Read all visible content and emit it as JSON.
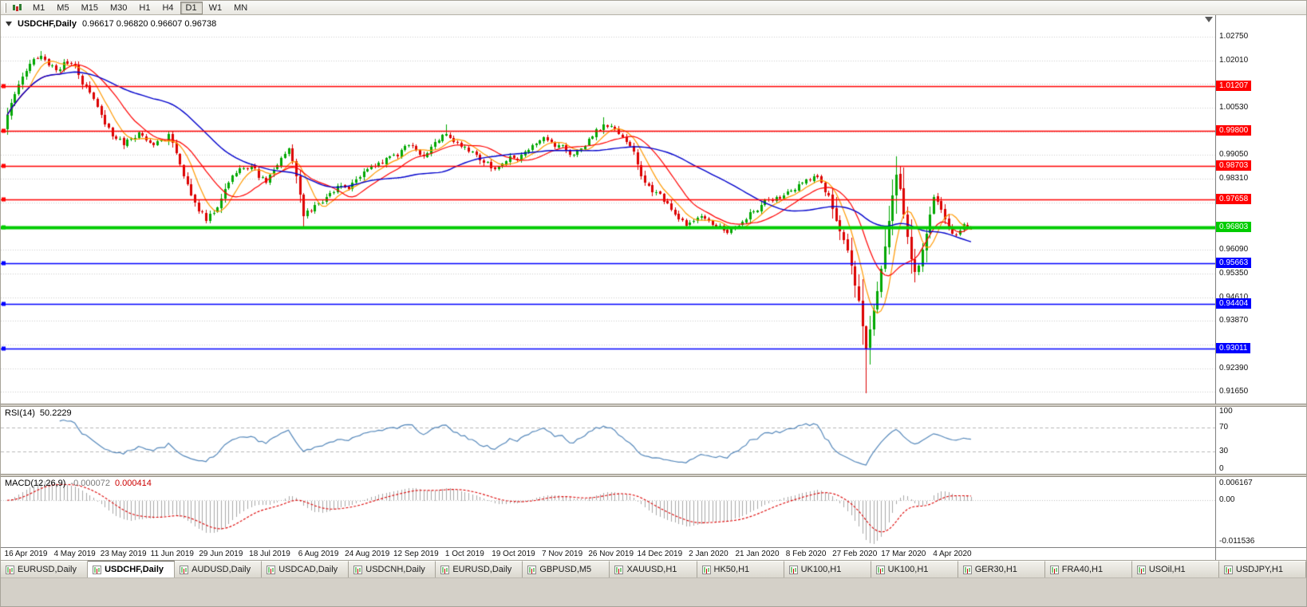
{
  "toolbar": {
    "timeframes": [
      "M1",
      "M5",
      "M15",
      "M30",
      "H1",
      "H4",
      "D1",
      "W1",
      "MN"
    ],
    "active": "D1"
  },
  "main_chart": {
    "title": "USDCHF,Daily",
    "ohlc_text": "0.96617 0.96820 0.96607 0.96738",
    "ohlc": {
      "open": "0.96617",
      "high": "0.96820",
      "low": "0.96607",
      "close": "0.96738"
    },
    "scale": {
      "max": 1.0275,
      "min": 0.9161,
      "grid_step": 0.0074
    },
    "price_axis_labels": [
      "1.02750",
      "1.02010",
      "1.00530",
      "0.99050",
      "0.98310",
      "0.96090",
      "0.95350",
      "0.94610",
      "0.93870",
      "0.92390",
      "0.91650"
    ],
    "levels": [
      {
        "price": 1.01207,
        "label": "1.01207",
        "type": "resistance",
        "color": "#FF0000",
        "width": 1.5
      },
      {
        "price": 0.998,
        "label": "0.99800",
        "type": "resistance",
        "color": "#FF0000",
        "width": 1.5
      },
      {
        "price": 0.98703,
        "label": "0.98703",
        "type": "resistance",
        "color": "#FF0000",
        "width": 1.5
      },
      {
        "price": 0.97658,
        "label": "0.97658",
        "type": "resistance",
        "color": "#FF0000",
        "width": 1.5
      },
      {
        "price": 0.96803,
        "label": "0.96803",
        "type": "current-level",
        "color": "#00CC00",
        "width": 4
      },
      {
        "price": 0.95663,
        "label": "0.95663",
        "type": "support",
        "color": "#0000FF",
        "width": 1.5
      },
      {
        "price": 0.94404,
        "label": "0.94404",
        "type": "support",
        "color": "#0000FF",
        "width": 1.5
      },
      {
        "price": 0.93011,
        "label": "0.93011",
        "type": "support",
        "color": "#0000FF",
        "width": 1.5
      }
    ]
  },
  "colors": {
    "candle_up": "#00A800",
    "candle_down": "#DC0000",
    "ma_fast": "#FF9900",
    "ma_mid": "#FF0000",
    "ma_slow": "#0000CC",
    "rsi_line": "#5588BB",
    "macd_hist": "#A8A8A8",
    "macd_signal": "#DD0000",
    "grid": "#CDCDCD"
  },
  "rsi": {
    "title": "RSI(14)",
    "value": "50.2229",
    "period": 14,
    "levels": [
      70,
      30
    ],
    "axis_labels": [
      "100",
      "70",
      "30",
      "0"
    ]
  },
  "macd": {
    "title": "MACD(12,26,9)",
    "value_main": "-0.000072",
    "value_signal": "0.000414",
    "fast": 12,
    "slow": 26,
    "signal": 9,
    "axis_labels": [
      "0.006167",
      "0.00",
      "-0.011536"
    ]
  },
  "chart_data": {
    "type": "candlestick",
    "symbol": "USDCHF",
    "timeframe": "Daily",
    "bars": 258,
    "last_ohlc": {
      "open": 0.96617,
      "high": 0.9682,
      "low": 0.96607,
      "close": 0.96738
    },
    "x_labels": [
      "16 Apr 2019",
      "4 May 2019",
      "23 May 2019",
      "11 Jun 2019",
      "29 Jun 2019",
      "18 Jul 2019",
      "6 Aug 2019",
      "24 Aug 2019",
      "12 Sep 2019",
      "1 Oct 2019",
      "19 Oct 2019",
      "7 Nov 2019",
      "26 Nov 2019",
      "14 Dec 2019",
      "2 Jan 2020",
      "21 Jan 2020",
      "8 Feb 2020",
      "27 Feb 2020",
      "17 Mar 2020",
      "4 Apr 2020"
    ],
    "close_path": [
      [
        0,
        1.003
      ],
      [
        2,
        1.0095
      ],
      [
        4,
        1.015
      ],
      [
        7,
        1.0205
      ],
      [
        9,
        1.0215
      ],
      [
        11,
        1.0185
      ],
      [
        13,
        1.017
      ],
      [
        15,
        1.0195
      ],
      [
        17,
        1.019
      ],
      [
        19,
        1.0155
      ],
      [
        21,
        1.012
      ],
      [
        23,
        1.008
      ],
      [
        25,
        1.003
      ],
      [
        27,
        0.999
      ],
      [
        29,
        0.9955
      ],
      [
        31,
        0.9935
      ],
      [
        33,
        0.9955
      ],
      [
        35,
        0.9975
      ],
      [
        37,
        0.995
      ],
      [
        39,
        0.9935
      ],
      [
        41,
        0.995
      ],
      [
        43,
        0.997
      ],
      [
        45,
        0.991
      ],
      [
        47,
        0.984
      ],
      [
        49,
        0.978
      ],
      [
        51,
        0.973
      ],
      [
        53,
        0.97
      ],
      [
        55,
        0.9725
      ],
      [
        57,
        0.977
      ],
      [
        59,
        0.982
      ],
      [
        61,
        0.985
      ],
      [
        63,
        0.9865
      ],
      [
        65,
        0.987
      ],
      [
        67,
        0.9835
      ],
      [
        69,
        0.982
      ],
      [
        71,
        0.986
      ],
      [
        73,
        0.9895
      ],
      [
        75,
        0.9925
      ],
      [
        77,
        0.984
      ],
      [
        79,
        0.9715
      ],
      [
        81,
        0.973
      ],
      [
        83,
        0.9755
      ],
      [
        85,
        0.9775
      ],
      [
        87,
        0.979
      ],
      [
        89,
        0.981
      ],
      [
        91,
        0.98
      ],
      [
        93,
        0.983
      ],
      [
        95,
        0.9855
      ],
      [
        97,
        0.987
      ],
      [
        99,
        0.988
      ],
      [
        101,
        0.9895
      ],
      [
        103,
        0.9905
      ],
      [
        105,
        0.992
      ],
      [
        107,
        0.9935
      ],
      [
        109,
        0.992
      ],
      [
        111,
        0.99
      ],
      [
        113,
        0.993
      ],
      [
        115,
        0.995
      ],
      [
        117,
        0.997
      ],
      [
        119,
        0.9945
      ],
      [
        121,
        0.993
      ],
      [
        123,
        0.9915
      ],
      [
        125,
        0.9905
      ],
      [
        127,
        0.988
      ],
      [
        129,
        0.9865
      ],
      [
        131,
        0.987
      ],
      [
        133,
        0.9885
      ],
      [
        135,
        0.9895
      ],
      [
        137,
        0.9905
      ],
      [
        139,
        0.992
      ],
      [
        141,
        0.994
      ],
      [
        143,
        0.996
      ],
      [
        145,
        0.9945
      ],
      [
        147,
        0.9935
      ],
      [
        149,
        0.992
      ],
      [
        151,
        0.9905
      ],
      [
        153,
        0.9925
      ],
      [
        155,
        0.9955
      ],
      [
        157,
        0.9985
      ],
      [
        159,
        1.0
      ],
      [
        161,
        0.9995
      ],
      [
        163,
        0.997
      ],
      [
        165,
        0.9945
      ],
      [
        167,
        0.9915
      ],
      [
        169,
        0.984
      ],
      [
        171,
        0.981
      ],
      [
        173,
        0.979
      ],
      [
        175,
        0.976
      ],
      [
        177,
        0.9735
      ],
      [
        179,
        0.9705
      ],
      [
        181,
        0.9685
      ],
      [
        183,
        0.97
      ],
      [
        185,
        0.9715
      ],
      [
        187,
        0.97
      ],
      [
        189,
        0.968
      ],
      [
        191,
        0.967
      ],
      [
        193,
        0.9675
      ],
      [
        195,
        0.9685
      ],
      [
        197,
        0.9705
      ],
      [
        199,
        0.973
      ],
      [
        201,
        0.975
      ],
      [
        203,
        0.9765
      ],
      [
        205,
        0.9775
      ],
      [
        207,
        0.978
      ],
      [
        209,
        0.9795
      ],
      [
        211,
        0.9815
      ],
      [
        213,
        0.983
      ],
      [
        215,
        0.984
      ],
      [
        217,
        0.982
      ],
      [
        219,
        0.978
      ],
      [
        221,
        0.97
      ],
      [
        223,
        0.964
      ],
      [
        225,
        0.956
      ],
      [
        227,
        0.945
      ],
      [
        229,
        0.93
      ],
      [
        230,
        0.936
      ],
      [
        231,
        0.942
      ],
      [
        232,
        0.948
      ],
      [
        233,
        0.955
      ],
      [
        234,
        0.962
      ],
      [
        235,
        0.97
      ],
      [
        236,
        0.978
      ],
      [
        237,
        0.9845
      ],
      [
        238,
        0.98
      ],
      [
        239,
        0.972
      ],
      [
        240,
        0.965
      ],
      [
        241,
        0.958
      ],
      [
        242,
        0.954
      ],
      [
        243,
        0.956
      ],
      [
        244,
        0.961
      ],
      [
        245,
        0.966
      ],
      [
        246,
        0.972
      ],
      [
        247,
        0.9775
      ],
      [
        248,
        0.976
      ],
      [
        249,
        0.9735
      ],
      [
        250,
        0.9705
      ],
      [
        251,
        0.968
      ],
      [
        252,
        0.966
      ],
      [
        253,
        0.9655
      ],
      [
        254,
        0.967
      ],
      [
        255,
        0.969
      ],
      [
        256,
        0.968
      ],
      [
        257,
        0.96738
      ]
    ],
    "extremes": [
      {
        "i": 9,
        "h": 1.0231
      },
      {
        "i": 53,
        "l": 0.9693
      },
      {
        "i": 79,
        "l": 0.9702
      },
      {
        "i": 117,
        "h": 1.0
      },
      {
        "i": 159,
        "h": 1.0023
      },
      {
        "i": 229,
        "l": 0.9161
      },
      {
        "i": 237,
        "h": 0.9901
      }
    ]
  },
  "tabs": [
    {
      "label": "EURUSD,Daily"
    },
    {
      "label": "USDCHF,Daily",
      "active": true
    },
    {
      "label": "AUDUSD,Daily"
    },
    {
      "label": "USDCAD,Daily"
    },
    {
      "label": "USDCNH,Daily"
    },
    {
      "label": "EURUSD,Daily"
    },
    {
      "label": "GBPUSD,M5"
    },
    {
      "label": "XAUUSD,H1"
    },
    {
      "label": "HK50,H1"
    },
    {
      "label": "UK100,H1"
    },
    {
      "label": "UK100,H1"
    },
    {
      "label": "GER30,H1"
    },
    {
      "label": "FRA40,H1"
    },
    {
      "label": "USOil,H1"
    },
    {
      "label": "USDJPY,H1"
    }
  ]
}
